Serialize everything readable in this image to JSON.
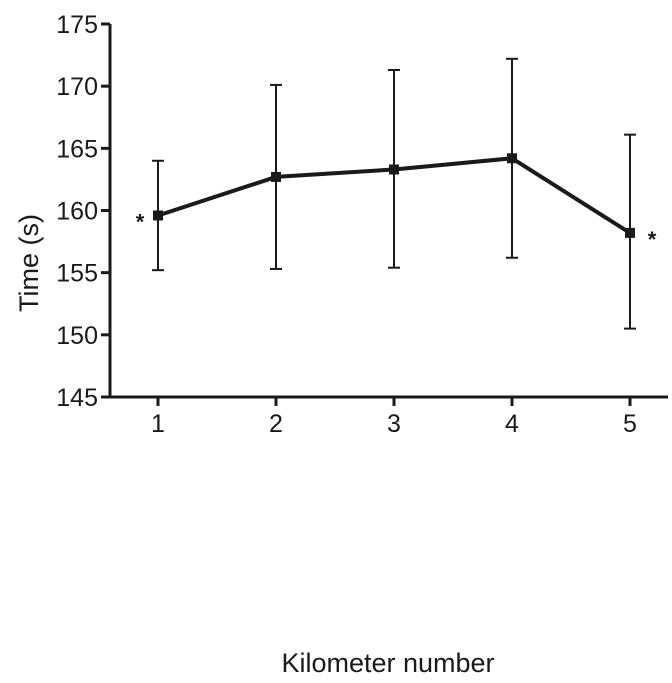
{
  "chart_data": {
    "type": "line",
    "xlabel": "Kilometer number",
    "ylabel": "Time (s)",
    "x": [
      1,
      2,
      3,
      4,
      5
    ],
    "xticks": [
      "1",
      "2",
      "3",
      "4",
      "5"
    ],
    "ylim": [
      145,
      175
    ],
    "yticks": [
      "145",
      "150",
      "155",
      "160",
      "165",
      "170",
      "175"
    ],
    "grid": false,
    "series": [
      {
        "values": [
          159.6,
          162.7,
          163.3,
          164.2,
          158.2
        ],
        "error_low": [
          155.2,
          155.3,
          155.4,
          156.2,
          150.5
        ],
        "error_high": [
          164.0,
          170.1,
          171.3,
          172.2,
          166.1
        ]
      }
    ],
    "annotations": [
      {
        "x": 1,
        "text": "*"
      },
      {
        "x": 5,
        "text": "*"
      }
    ],
    "colors": {
      "line": "#1a1a1a",
      "axis": "#1a1a1a"
    }
  }
}
